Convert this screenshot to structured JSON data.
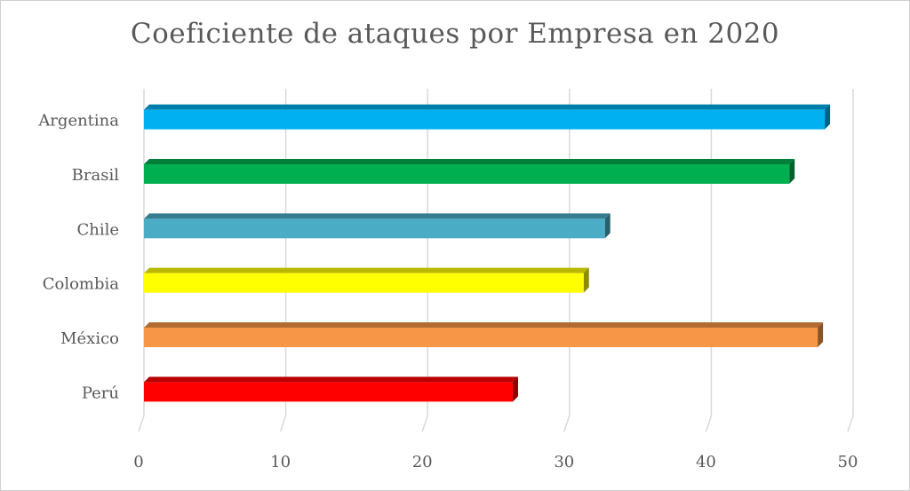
{
  "chart_data": {
    "type": "bar",
    "orientation": "horizontal",
    "title": "Coeficiente de ataques por Empresa en 2020",
    "categories": [
      "Argentina",
      "Brasil",
      "Chile",
      "Colombia",
      "México",
      "Perú"
    ],
    "values": [
      48,
      45.5,
      32.5,
      31,
      47.5,
      26
    ],
    "colors": [
      "#00b0f0",
      "#00b050",
      "#4bacc6",
      "#ffff00",
      "#f79646",
      "#ff0000"
    ],
    "xlim": [
      0,
      50
    ],
    "xticks": [
      "0",
      "10",
      "20",
      "30",
      "40",
      "50"
    ],
    "grid": true,
    "legend": "none",
    "style": "3d-bar"
  }
}
